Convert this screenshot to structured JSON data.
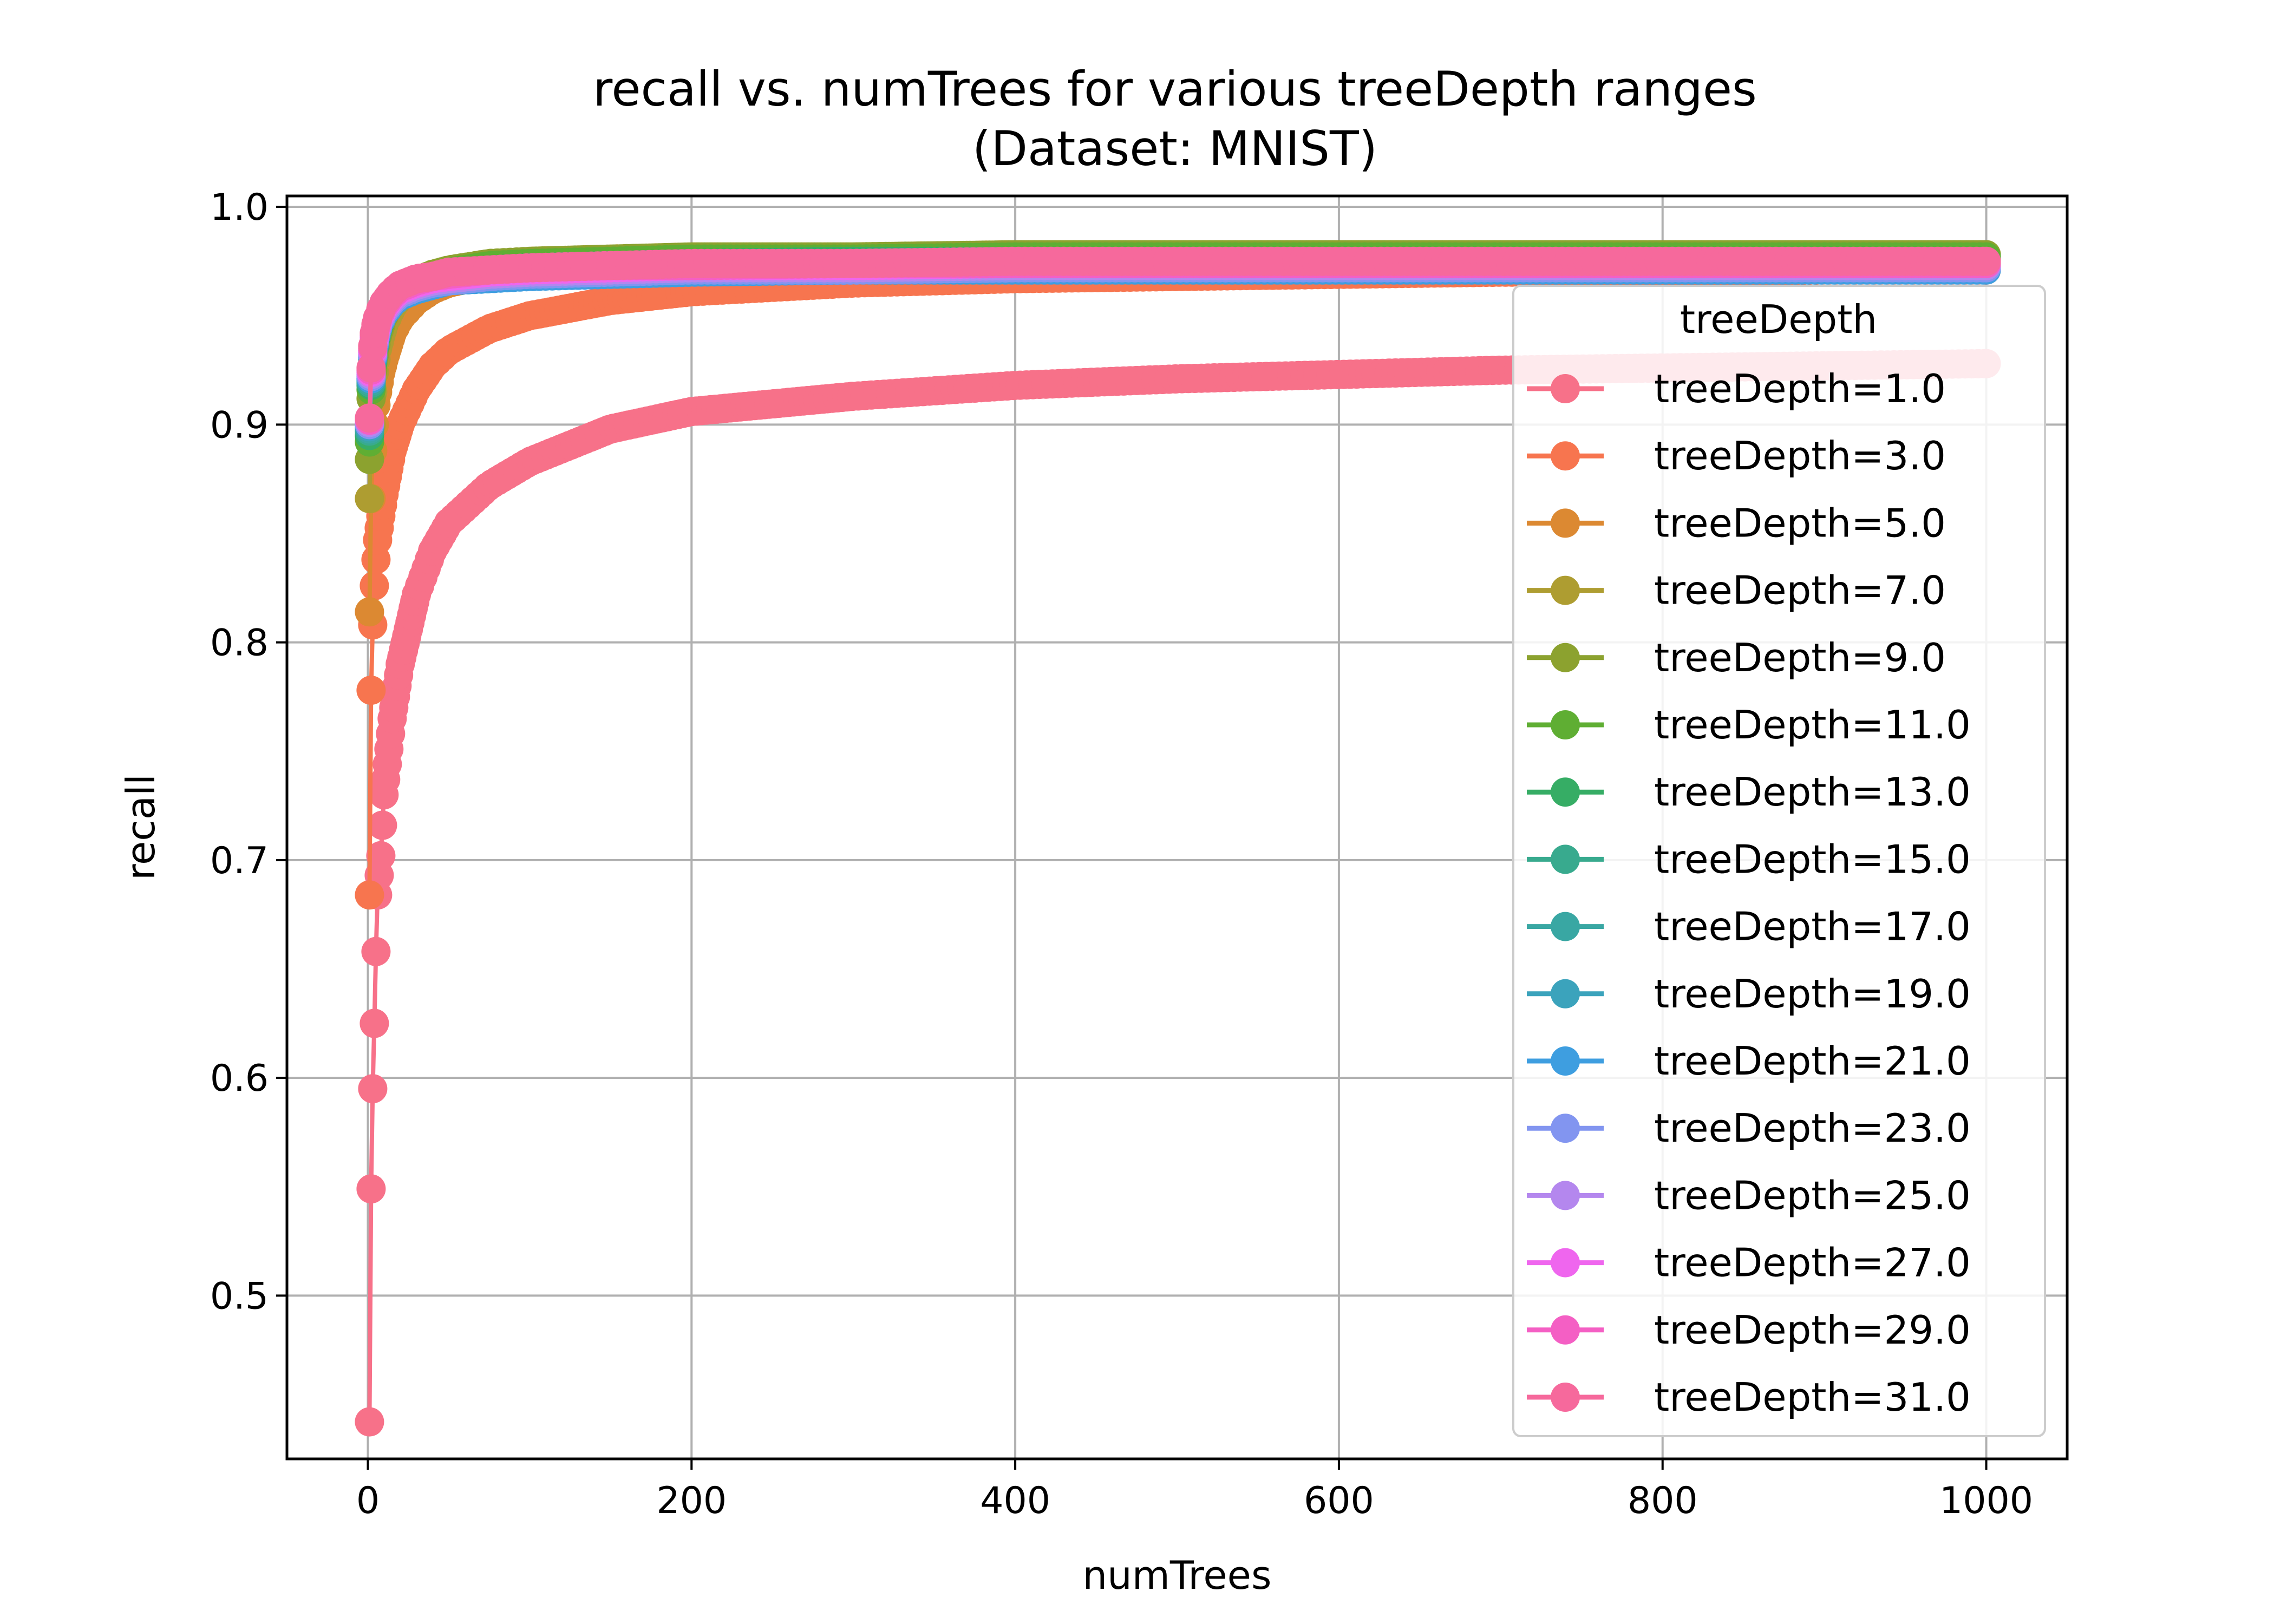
{
  "chart_data": {
    "type": "line",
    "title": "recall vs. numTrees for various treeDepth ranges",
    "subtitle": "(Dataset: MNIST)",
    "xlabel": "numTrees",
    "ylabel": "recall",
    "xlim": [
      -50,
      1050
    ],
    "ylim": [
      0.425,
      1.005
    ],
    "xticks": [
      {
        "value": 0,
        "label": "0"
      },
      {
        "value": 200,
        "label": "200"
      },
      {
        "value": 400,
        "label": "400"
      },
      {
        "value": 600,
        "label": "600"
      },
      {
        "value": 800,
        "label": "800"
      },
      {
        "value": 1000,
        "label": "1000"
      }
    ],
    "yticks": [
      {
        "value": 0.5,
        "label": "0.5"
      },
      {
        "value": 0.6,
        "label": "0.6"
      },
      {
        "value": 0.7,
        "label": "0.7"
      },
      {
        "value": 0.8,
        "label": "0.8"
      },
      {
        "value": 0.9,
        "label": "0.9"
      },
      {
        "value": 1.0,
        "label": "1.0"
      }
    ],
    "grid": true,
    "legend": {
      "title": "treeDepth",
      "placement": "right"
    },
    "x": [
      1,
      2,
      3,
      4,
      5,
      6,
      8,
      10,
      15,
      20,
      30,
      40,
      50,
      75,
      100,
      150,
      200,
      300,
      400,
      500,
      600,
      700,
      800,
      900,
      1000
    ],
    "series": [
      {
        "name": "treeDepth=1.0",
        "color": "#f77189",
        "values": [
          0.442,
          0.549,
          0.595,
          0.625,
          0.658,
          0.684,
          0.702,
          0.73,
          0.765,
          0.79,
          0.822,
          0.842,
          0.855,
          0.872,
          0.883,
          0.898,
          0.906,
          0.913,
          0.918,
          0.921,
          0.923,
          0.925,
          0.926,
          0.927,
          0.928
        ]
      },
      {
        "name": "treeDepth=3.0",
        "color": "#f7754f",
        "values": [
          0.684,
          0.778,
          0.808,
          0.826,
          0.838,
          0.847,
          0.858,
          0.868,
          0.888,
          0.9,
          0.916,
          0.927,
          0.934,
          0.944,
          0.95,
          0.957,
          0.961,
          0.965,
          0.967,
          0.968,
          0.969,
          0.97,
          0.97,
          0.971,
          0.971
        ]
      },
      {
        "name": "treeDepth=5.0",
        "color": "#dc8932",
        "values": [
          0.814,
          0.866,
          0.888,
          0.9,
          0.909,
          0.915,
          0.924,
          0.93,
          0.942,
          0.949,
          0.957,
          0.962,
          0.965,
          0.969,
          0.971,
          0.973,
          0.974,
          0.975,
          0.975,
          0.976,
          0.976,
          0.976,
          0.976,
          0.976,
          0.976
        ]
      },
      {
        "name": "treeDepth=7.0",
        "color": "#ae9d31",
        "values": [
          0.866,
          0.9,
          0.915,
          0.924,
          0.93,
          0.935,
          0.941,
          0.946,
          0.954,
          0.959,
          0.965,
          0.968,
          0.97,
          0.973,
          0.975,
          0.976,
          0.977,
          0.977,
          0.978,
          0.978,
          0.978,
          0.978,
          0.978,
          0.978,
          0.978
        ]
      },
      {
        "name": "treeDepth=9.0",
        "color": "#8ca22f",
        "values": [
          0.884,
          0.912,
          0.925,
          0.932,
          0.937,
          0.941,
          0.946,
          0.95,
          0.957,
          0.961,
          0.966,
          0.969,
          0.971,
          0.974,
          0.975,
          0.976,
          0.977,
          0.977,
          0.978,
          0.978,
          0.978,
          0.978,
          0.978,
          0.978,
          0.978
        ]
      },
      {
        "name": "treeDepth=11.0",
        "color": "#5fae33",
        "values": [
          0.892,
          0.916,
          0.928,
          0.935,
          0.94,
          0.943,
          0.948,
          0.951,
          0.957,
          0.961,
          0.966,
          0.968,
          0.97,
          0.973,
          0.974,
          0.975,
          0.976,
          0.976,
          0.977,
          0.977,
          0.977,
          0.977,
          0.977,
          0.977,
          0.977
        ]
      },
      {
        "name": "treeDepth=13.0",
        "color": "#36ad65",
        "values": [
          0.895,
          0.918,
          0.929,
          0.936,
          0.94,
          0.944,
          0.948,
          0.951,
          0.957,
          0.96,
          0.965,
          0.967,
          0.969,
          0.971,
          0.972,
          0.973,
          0.974,
          0.975,
          0.975,
          0.975,
          0.975,
          0.975,
          0.975,
          0.975,
          0.975
        ]
      },
      {
        "name": "treeDepth=15.0",
        "color": "#38aa8e",
        "values": [
          0.897,
          0.919,
          0.93,
          0.936,
          0.941,
          0.944,
          0.948,
          0.951,
          0.956,
          0.96,
          0.964,
          0.966,
          0.968,
          0.97,
          0.971,
          0.972,
          0.973,
          0.973,
          0.974,
          0.974,
          0.974,
          0.974,
          0.974,
          0.974,
          0.974
        ]
      },
      {
        "name": "treeDepth=17.0",
        "color": "#39a7a3",
        "values": [
          0.898,
          0.92,
          0.931,
          0.937,
          0.941,
          0.944,
          0.948,
          0.951,
          0.956,
          0.959,
          0.963,
          0.965,
          0.967,
          0.969,
          0.97,
          0.971,
          0.972,
          0.972,
          0.973,
          0.973,
          0.973,
          0.973,
          0.973,
          0.973,
          0.973
        ]
      },
      {
        "name": "treeDepth=19.0",
        "color": "#3ba3bc",
        "values": [
          0.899,
          0.921,
          0.931,
          0.937,
          0.941,
          0.944,
          0.948,
          0.951,
          0.956,
          0.959,
          0.963,
          0.965,
          0.966,
          0.968,
          0.969,
          0.97,
          0.971,
          0.971,
          0.972,
          0.972,
          0.972,
          0.972,
          0.972,
          0.972,
          0.972
        ]
      },
      {
        "name": "treeDepth=21.0",
        "color": "#3e9ee0",
        "values": [
          0.9,
          0.921,
          0.931,
          0.937,
          0.941,
          0.944,
          0.948,
          0.951,
          0.956,
          0.959,
          0.962,
          0.964,
          0.966,
          0.967,
          0.968,
          0.969,
          0.97,
          0.971,
          0.971,
          0.971,
          0.971,
          0.971,
          0.971,
          0.971,
          0.971
        ]
      },
      {
        "name": "treeDepth=23.0",
        "color": "#8295f0",
        "values": [
          0.9,
          0.922,
          0.932,
          0.938,
          0.942,
          0.945,
          0.949,
          0.952,
          0.957,
          0.96,
          0.963,
          0.965,
          0.966,
          0.968,
          0.969,
          0.97,
          0.971,
          0.971,
          0.972,
          0.972,
          0.972,
          0.972,
          0.972,
          0.972,
          0.972
        ]
      },
      {
        "name": "treeDepth=25.0",
        "color": "#b487ee",
        "values": [
          0.901,
          0.923,
          0.933,
          0.939,
          0.943,
          0.946,
          0.95,
          0.953,
          0.958,
          0.961,
          0.964,
          0.966,
          0.967,
          0.969,
          0.97,
          0.971,
          0.972,
          0.972,
          0.973,
          0.973,
          0.973,
          0.973,
          0.973,
          0.973,
          0.973
        ]
      },
      {
        "name": "treeDepth=27.0",
        "color": "#ef66ee",
        "values": [
          0.902,
          0.924,
          0.934,
          0.94,
          0.944,
          0.947,
          0.951,
          0.954,
          0.959,
          0.962,
          0.965,
          0.967,
          0.968,
          0.97,
          0.971,
          0.972,
          0.973,
          0.973,
          0.974,
          0.974,
          0.974,
          0.974,
          0.974,
          0.974,
          0.974
        ]
      },
      {
        "name": "treeDepth=29.0",
        "color": "#f45fc4",
        "values": [
          0.902,
          0.925,
          0.935,
          0.941,
          0.945,
          0.948,
          0.952,
          0.955,
          0.96,
          0.963,
          0.966,
          0.968,
          0.969,
          0.971,
          0.972,
          0.973,
          0.973,
          0.974,
          0.974,
          0.974,
          0.974,
          0.974,
          0.974,
          0.974,
          0.974
        ]
      },
      {
        "name": "treeDepth=31.0",
        "color": "#f6699c",
        "values": [
          0.903,
          0.926,
          0.936,
          0.942,
          0.946,
          0.949,
          0.953,
          0.956,
          0.961,
          0.964,
          0.967,
          0.968,
          0.97,
          0.971,
          0.972,
          0.973,
          0.974,
          0.974,
          0.975,
          0.975,
          0.975,
          0.975,
          0.975,
          0.975,
          0.975
        ]
      }
    ]
  }
}
